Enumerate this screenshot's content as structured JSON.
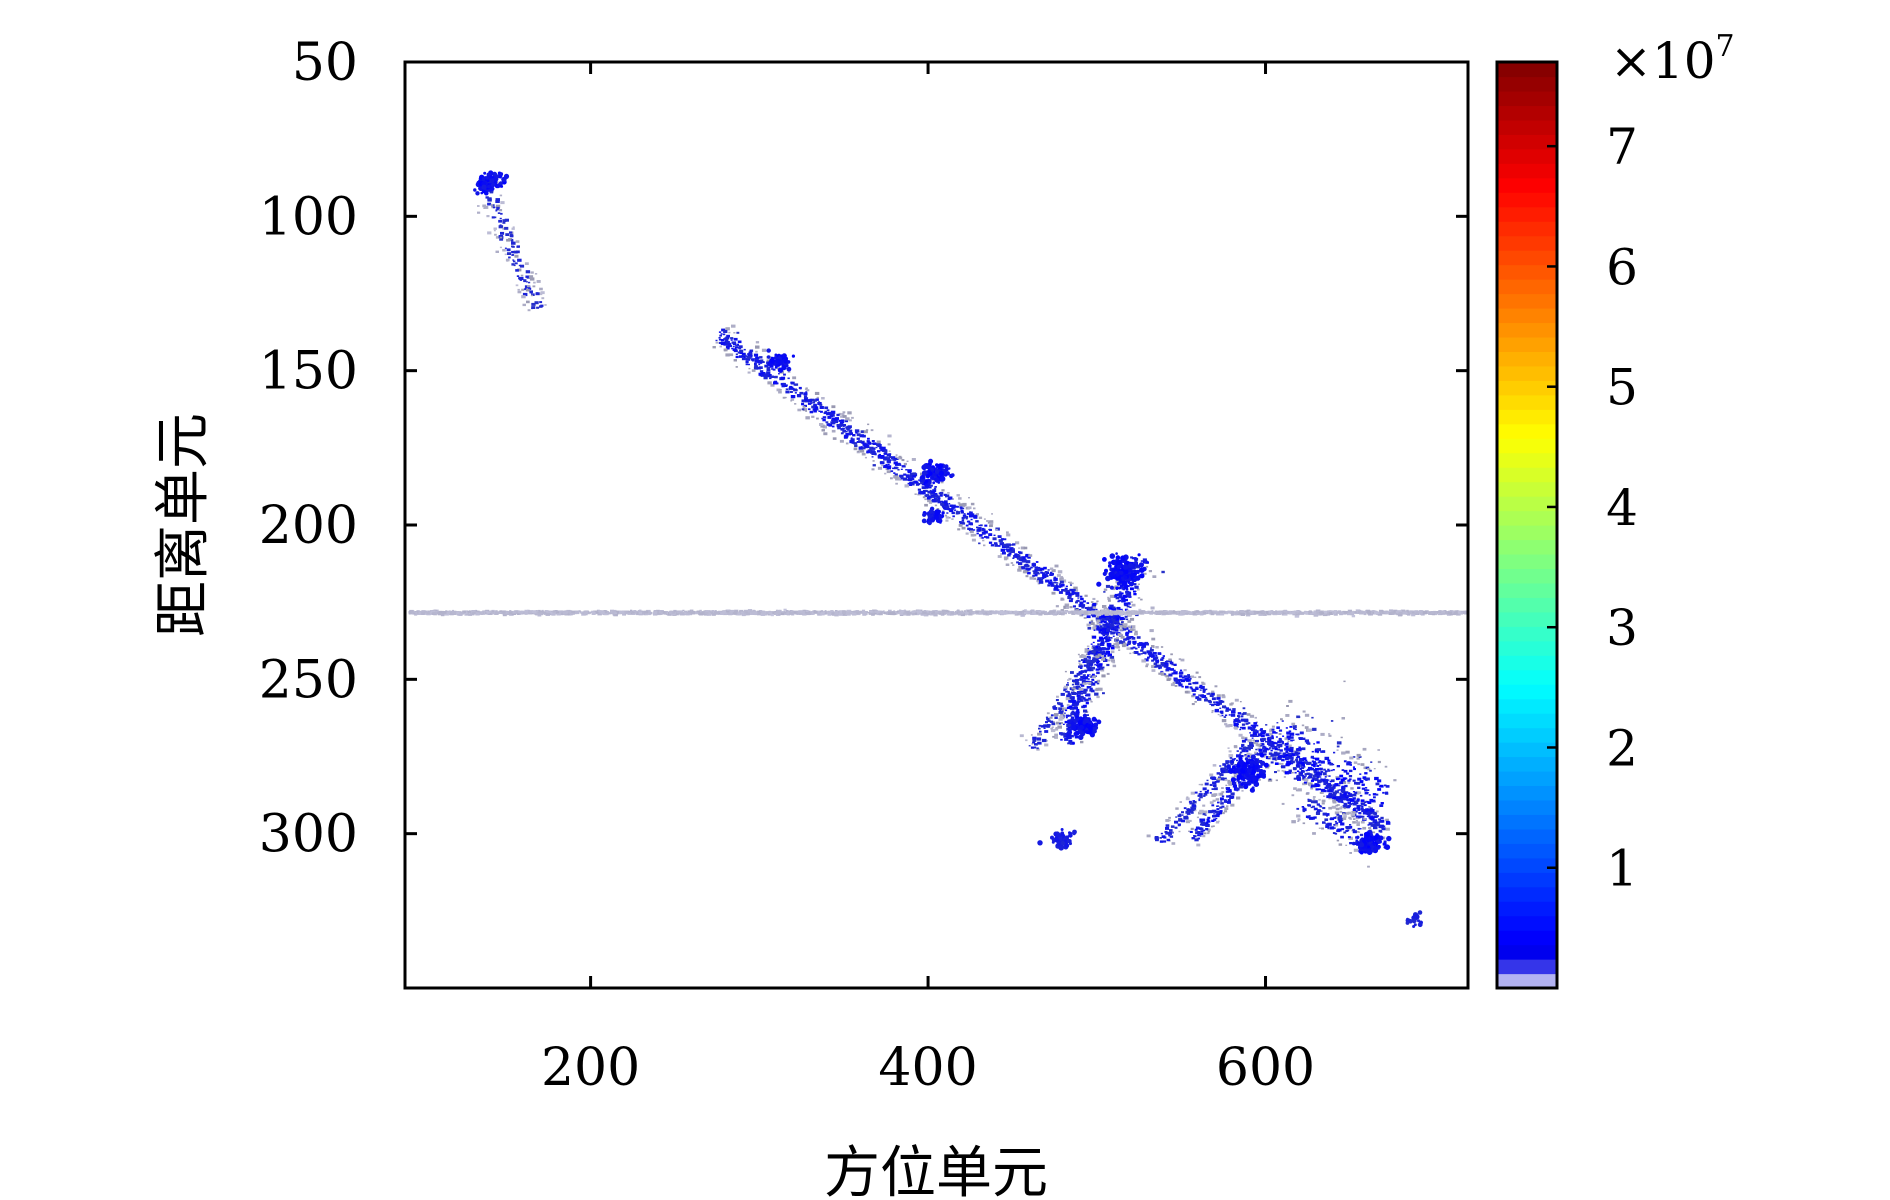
{
  "chart_data": {
    "type": "heatmap",
    "xlabel": "方位单元",
    "ylabel": "距离单元",
    "xlim": [
      90,
      720
    ],
    "ylim": [
      350,
      50
    ],
    "y_reversed": true,
    "xticks": [
      200,
      400,
      600
    ],
    "yticks": [
      50,
      100,
      150,
      200,
      250,
      300
    ],
    "colorbar": {
      "range": [
        0,
        7.7
      ],
      "ticks": [
        1,
        2,
        3,
        4,
        5,
        6,
        7
      ],
      "multiplier_base": "×10",
      "multiplier_exp": "7",
      "colormap": "jet-white-floor"
    },
    "segments": [
      {
        "name": "main-track",
        "from": [
          275,
          138
        ],
        "to": [
          670,
          298
        ],
        "intensity": 0.85,
        "width": 6,
        "density": 2.2
      },
      {
        "name": "cross-a",
        "from": [
          498,
          245
        ],
        "to": [
          525,
          210
        ],
        "intensity": 1.0,
        "width": 8,
        "density": 2.5
      },
      {
        "name": "cross-b",
        "from": [
          480,
          270
        ],
        "to": [
          508,
          228
        ],
        "intensity": 1.0,
        "width": 8,
        "density": 2.5
      },
      {
        "name": "branch-lower",
        "from": [
          460,
          272
        ],
        "to": [
          500,
          240
        ],
        "intensity": 0.6,
        "width": 5,
        "density": 1.2
      },
      {
        "name": "branch-right-1",
        "from": [
          535,
          303
        ],
        "to": [
          590,
          270
        ],
        "intensity": 0.7,
        "width": 5,
        "density": 1.4
      },
      {
        "name": "branch-right-2",
        "from": [
          555,
          302
        ],
        "to": [
          600,
          272
        ],
        "intensity": 0.9,
        "width": 5,
        "density": 1.6
      },
      {
        "name": "wing",
        "from": [
          600,
          268
        ],
        "to": [
          668,
          290
        ],
        "intensity": 1.0,
        "width": 18,
        "density": 3.0
      },
      {
        "name": "wing-tail",
        "from": [
          620,
          290
        ],
        "to": [
          668,
          305
        ],
        "intensity": 0.8,
        "width": 8,
        "density": 1.6
      },
      {
        "name": "upper-left",
        "from": [
          135,
          88
        ],
        "to": [
          168,
          130
        ],
        "intensity": 0.5,
        "width": 6,
        "density": 1.2
      },
      {
        "name": "horizontal-clutter",
        "from": [
          92,
          228
        ],
        "to": [
          718,
          228
        ],
        "intensity": 0.12,
        "width": 2,
        "density": 2.5
      }
    ],
    "blobs": [
      {
        "x": 140,
        "y": 89,
        "intensity": 1.0,
        "radius": 4
      },
      {
        "x": 312,
        "y": 147,
        "intensity": 1.0,
        "radius": 3
      },
      {
        "x": 405,
        "y": 183,
        "intensity": 1.0,
        "radius": 4
      },
      {
        "x": 403,
        "y": 197,
        "intensity": 0.9,
        "radius": 3
      },
      {
        "x": 515,
        "y": 215,
        "intensity": 1.0,
        "radius": 5
      },
      {
        "x": 492,
        "y": 265,
        "intensity": 1.0,
        "radius": 4
      },
      {
        "x": 590,
        "y": 280,
        "intensity": 1.0,
        "radius": 5
      },
      {
        "x": 662,
        "y": 303,
        "intensity": 1.0,
        "radius": 4
      },
      {
        "x": 480,
        "y": 302,
        "intensity": 0.7,
        "radius": 3
      },
      {
        "x": 688,
        "y": 328,
        "intensity": 0.6,
        "radius": 2
      }
    ]
  }
}
